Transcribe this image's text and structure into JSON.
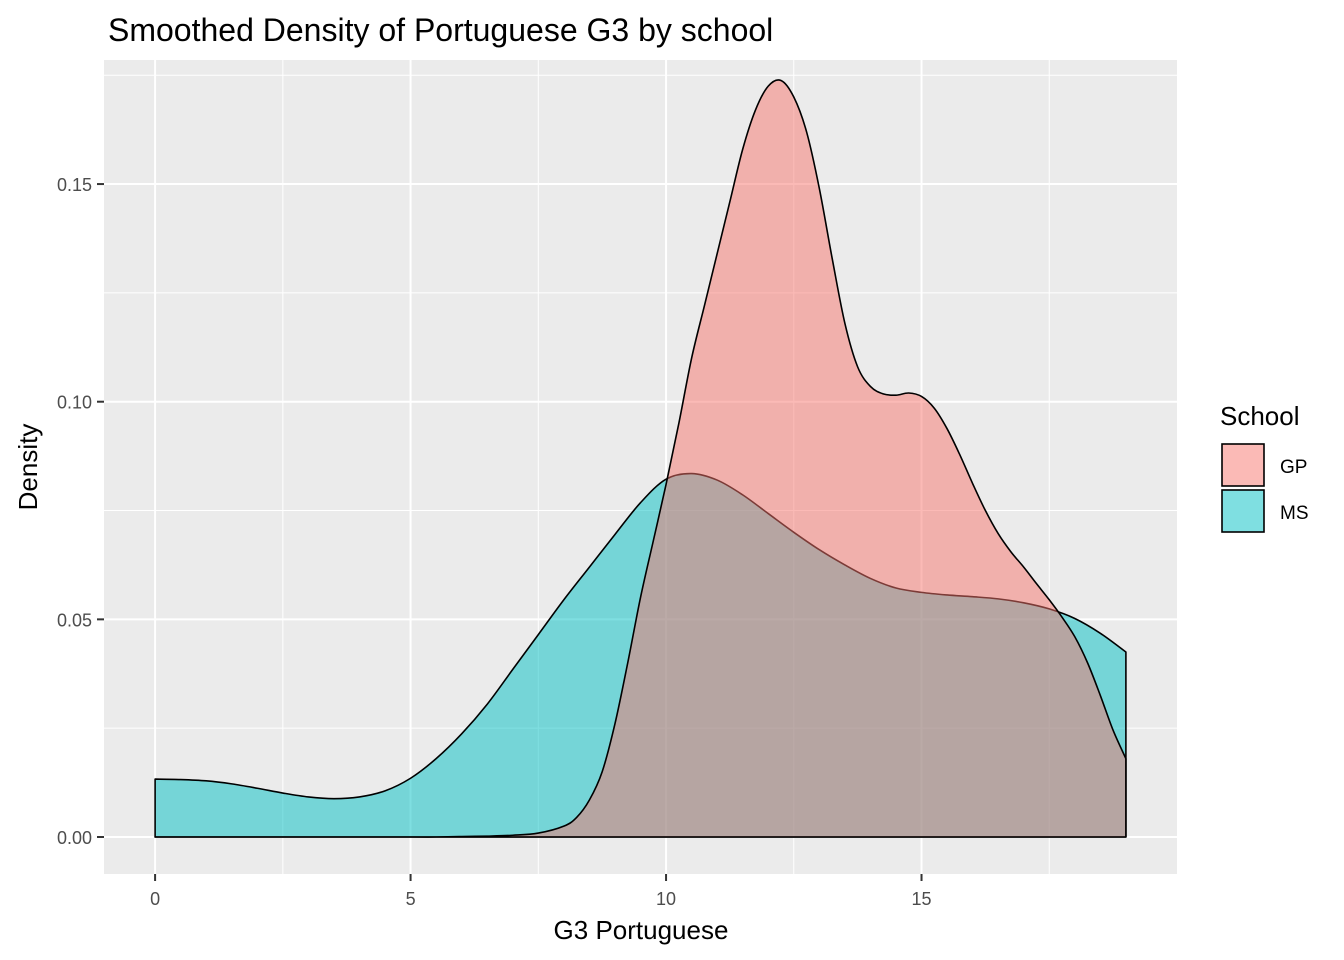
{
  "chart_data": {
    "type": "area",
    "title": "Smoothed Density of Portuguese G3 by school",
    "xlabel": "G3 Portuguese",
    "ylabel": "Density",
    "xlim": [
      -1,
      20
    ],
    "ylim": [
      -0.0085,
      0.1785
    ],
    "x_ticks": [
      0,
      5,
      10,
      15
    ],
    "x_tick_labels": [
      "0",
      "5",
      "10",
      "15"
    ],
    "y_ticks": [
      0.0,
      0.05,
      0.1,
      0.15
    ],
    "y_tick_labels": [
      "0.00",
      "0.05",
      "0.10",
      "0.15"
    ],
    "grid": true,
    "legend": {
      "title": "School",
      "position": "right"
    },
    "series": [
      {
        "name": "MS",
        "fill": "#00BFC4",
        "opacity": 0.5,
        "x": [
          0,
          0.5,
          1,
          1.5,
          2,
          2.5,
          3,
          3.5,
          4,
          4.5,
          5,
          5.5,
          6,
          6.5,
          7,
          7.5,
          8,
          8.5,
          9,
          9.5,
          10,
          10.5,
          11,
          11.5,
          12,
          12.5,
          13,
          13.5,
          14,
          14.5,
          15,
          15.5,
          16,
          16.5,
          17,
          17.5,
          18,
          18.5,
          19
        ],
        "y": [
          0.0133,
          0.0132,
          0.0129,
          0.0122,
          0.0112,
          0.0101,
          0.0092,
          0.0088,
          0.0092,
          0.0106,
          0.0135,
          0.018,
          0.0237,
          0.0305,
          0.0385,
          0.0465,
          0.0545,
          0.062,
          0.0695,
          0.0768,
          0.0822,
          0.0835,
          0.082,
          0.0786,
          0.0743,
          0.07,
          0.066,
          0.0625,
          0.0594,
          0.0572,
          0.0562,
          0.0556,
          0.0552,
          0.0547,
          0.0538,
          0.0524,
          0.0502,
          0.0468,
          0.0425
        ]
      },
      {
        "name": "GP",
        "fill": "#F8766D",
        "opacity": 0.5,
        "x": [
          0,
          1,
          2,
          3,
          4,
          5,
          5.5,
          6,
          6.5,
          7,
          7.5,
          8,
          8.25,
          8.5,
          8.75,
          9,
          9.25,
          9.5,
          9.75,
          10,
          10.25,
          10.5,
          10.75,
          11,
          11.25,
          11.5,
          11.75,
          12,
          12.25,
          12.5,
          12.75,
          13,
          13.25,
          13.5,
          13.75,
          14,
          14.25,
          14.5,
          14.75,
          15,
          15.25,
          15.5,
          15.75,
          16,
          16.25,
          16.5,
          16.75,
          17,
          17.25,
          17.5,
          17.75,
          18,
          18.25,
          18.5,
          18.75,
          19
        ],
        "y": [
          0,
          0,
          0,
          0,
          0,
          0,
          0,
          0.0001,
          0.0002,
          0.0004,
          0.0009,
          0.0025,
          0.0045,
          0.0085,
          0.015,
          0.026,
          0.04,
          0.055,
          0.068,
          0.081,
          0.095,
          0.11,
          0.122,
          0.134,
          0.146,
          0.158,
          0.167,
          0.1725,
          0.1738,
          0.17,
          0.162,
          0.149,
          0.133,
          0.118,
          0.108,
          0.1035,
          0.1018,
          0.1015,
          0.102,
          0.1012,
          0.0985,
          0.0938,
          0.0878,
          0.0812,
          0.075,
          0.0697,
          0.0655,
          0.062,
          0.0582,
          0.0545,
          0.0505,
          0.046,
          0.04,
          0.0325,
          0.0245,
          0.018
        ]
      }
    ]
  }
}
